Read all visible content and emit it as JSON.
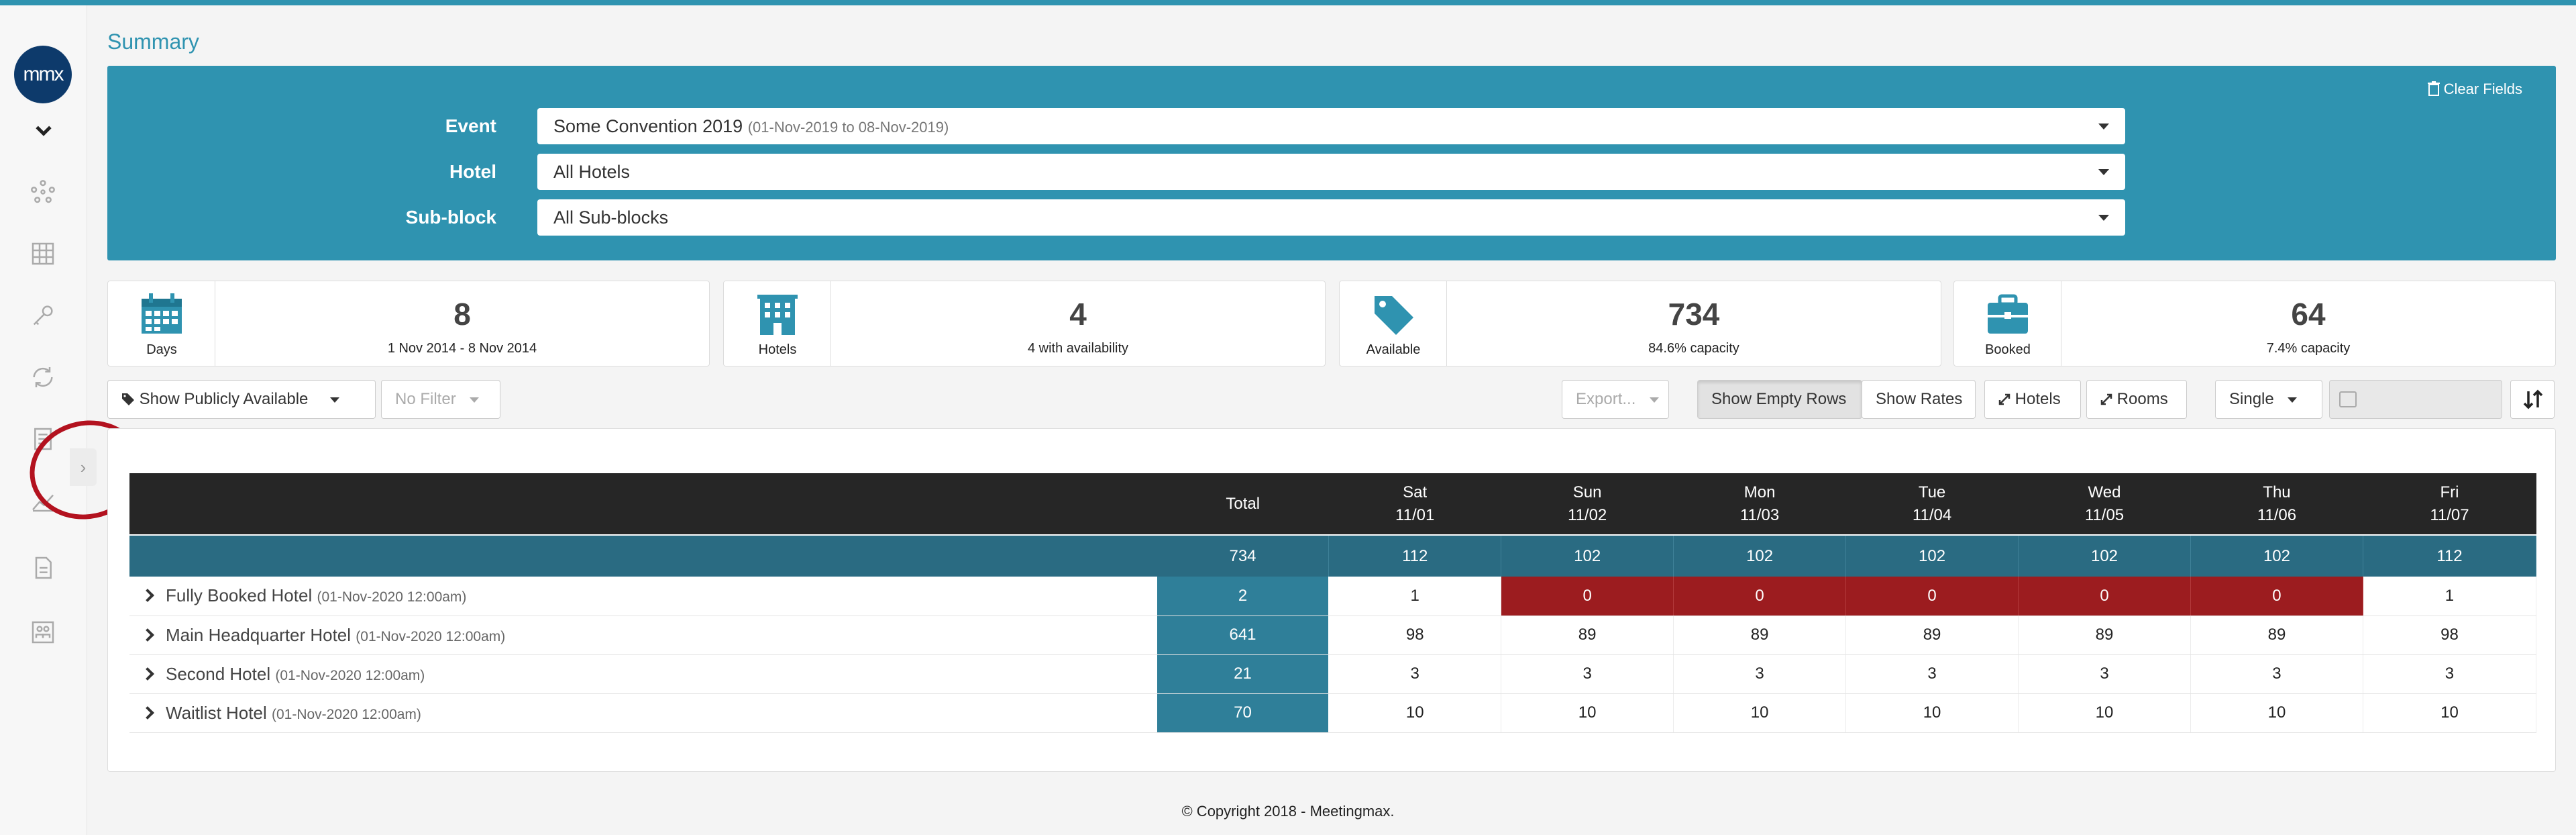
{
  "logo_text": "mmx",
  "page_title": "Summary",
  "filters": {
    "clear_label": "Clear Fields",
    "event_label": "Event",
    "event_value": "Some Convention 2019",
    "event_dates": "(01-Nov-2019 to 08-Nov-2019)",
    "hotel_label": "Hotel",
    "hotel_value": "All Hotels",
    "subblock_label": "Sub-block",
    "subblock_value": "All Sub-blocks"
  },
  "cards": [
    {
      "icon": "calendar-icon",
      "label": "Days",
      "value": "8",
      "detail": "1 Nov 2014 - 8 Nov 2014"
    },
    {
      "icon": "building-icon",
      "label": "Hotels",
      "value": "4",
      "detail": "4 with availability"
    },
    {
      "icon": "tag-icon",
      "label": "Available",
      "value": "734",
      "detail": "84.6% capacity"
    },
    {
      "icon": "briefcase-icon",
      "label": "Booked",
      "value": "64",
      "detail": "7.4% capacity"
    }
  ],
  "toolbar": {
    "availability_filter": "Show Publicly Available",
    "no_filter": "No Filter",
    "export": "Export...",
    "show_empty_rows": "Show Empty Rows",
    "show_rates": "Show Rates",
    "hotels": "Hotels",
    "rooms": "Rooms",
    "occupancy": "Single"
  },
  "table": {
    "total_header": "Total",
    "days": [
      {
        "dow": "Sat",
        "date": "11/01"
      },
      {
        "dow": "Sun",
        "date": "11/02"
      },
      {
        "dow": "Mon",
        "date": "11/03"
      },
      {
        "dow": "Tue",
        "date": "11/04"
      },
      {
        "dow": "Wed",
        "date": "11/05"
      },
      {
        "dow": "Thu",
        "date": "11/06"
      },
      {
        "dow": "Fri",
        "date": "11/07"
      }
    ],
    "totals": [
      "734",
      "112",
      "102",
      "102",
      "102",
      "102",
      "102",
      "112"
    ],
    "rows": [
      {
        "name": "Fully Booked Hotel",
        "cutoff": "(01-Nov-2020 12:00am)",
        "total": "2",
        "values": [
          "1",
          "0",
          "0",
          "0",
          "0",
          "0",
          "1"
        ]
      },
      {
        "name": "Main Headquarter Hotel",
        "cutoff": "(01-Nov-2020 12:00am)",
        "total": "641",
        "values": [
          "98",
          "89",
          "89",
          "89",
          "89",
          "89",
          "98"
        ]
      },
      {
        "name": "Second Hotel",
        "cutoff": "(01-Nov-2020 12:00am)",
        "total": "21",
        "values": [
          "3",
          "3",
          "3",
          "3",
          "3",
          "3",
          "3"
        ]
      },
      {
        "name": "Waitlist Hotel",
        "cutoff": "(01-Nov-2020 12:00am)",
        "total": "70",
        "values": [
          "10",
          "10",
          "10",
          "10",
          "10",
          "10",
          "10"
        ]
      }
    ]
  },
  "colors": {
    "accent": "#2f93b0",
    "sold_out": "#9c1c1f",
    "header_dark": "#262626",
    "totals_row": "#2a6b82"
  },
  "footer": "© Copyright 2018 - Meetingmax."
}
